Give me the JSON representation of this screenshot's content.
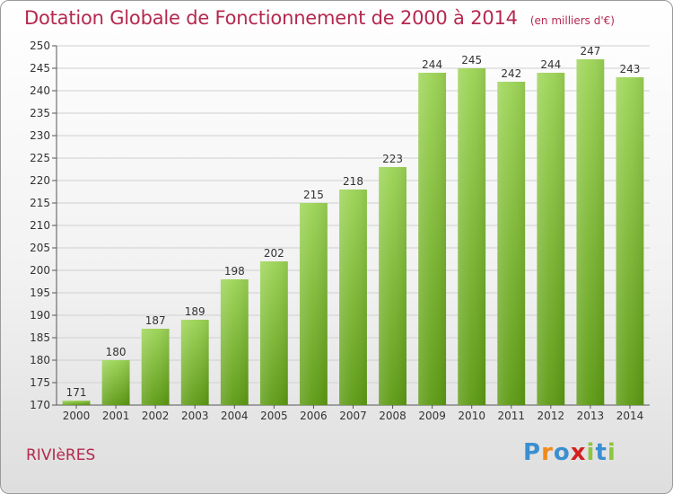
{
  "header": {
    "title": "Dotation Globale de Fonctionnement de 2000 à 2014",
    "unit": "(en milliers d'€)"
  },
  "footer": {
    "commune": "RIVIèRES",
    "brand": "Proxiti"
  },
  "colors": {
    "title": "#b5284f",
    "bar_top": "#9cd455",
    "bar_bottom": "#5c9a12",
    "brand": [
      "#3a8fd0",
      "#f08a1c",
      "#3a8fd0",
      "#d42020",
      "#8dc63f",
      "#3a8fd0",
      "#8dc63f"
    ]
  },
  "chart_data": {
    "type": "bar",
    "categories": [
      "2000",
      "2001",
      "2002",
      "2003",
      "2004",
      "2005",
      "2006",
      "2007",
      "2008",
      "2009",
      "2010",
      "2011",
      "2012",
      "2013",
      "2014"
    ],
    "values": [
      171,
      180,
      187,
      189,
      198,
      202,
      215,
      218,
      223,
      244,
      245,
      242,
      244,
      247,
      243
    ],
    "ylim": [
      170,
      250
    ],
    "yticks": [
      170,
      175,
      180,
      185,
      190,
      195,
      200,
      205,
      210,
      215,
      220,
      225,
      230,
      235,
      240,
      245,
      250
    ],
    "grid": true,
    "data_labels": true
  }
}
